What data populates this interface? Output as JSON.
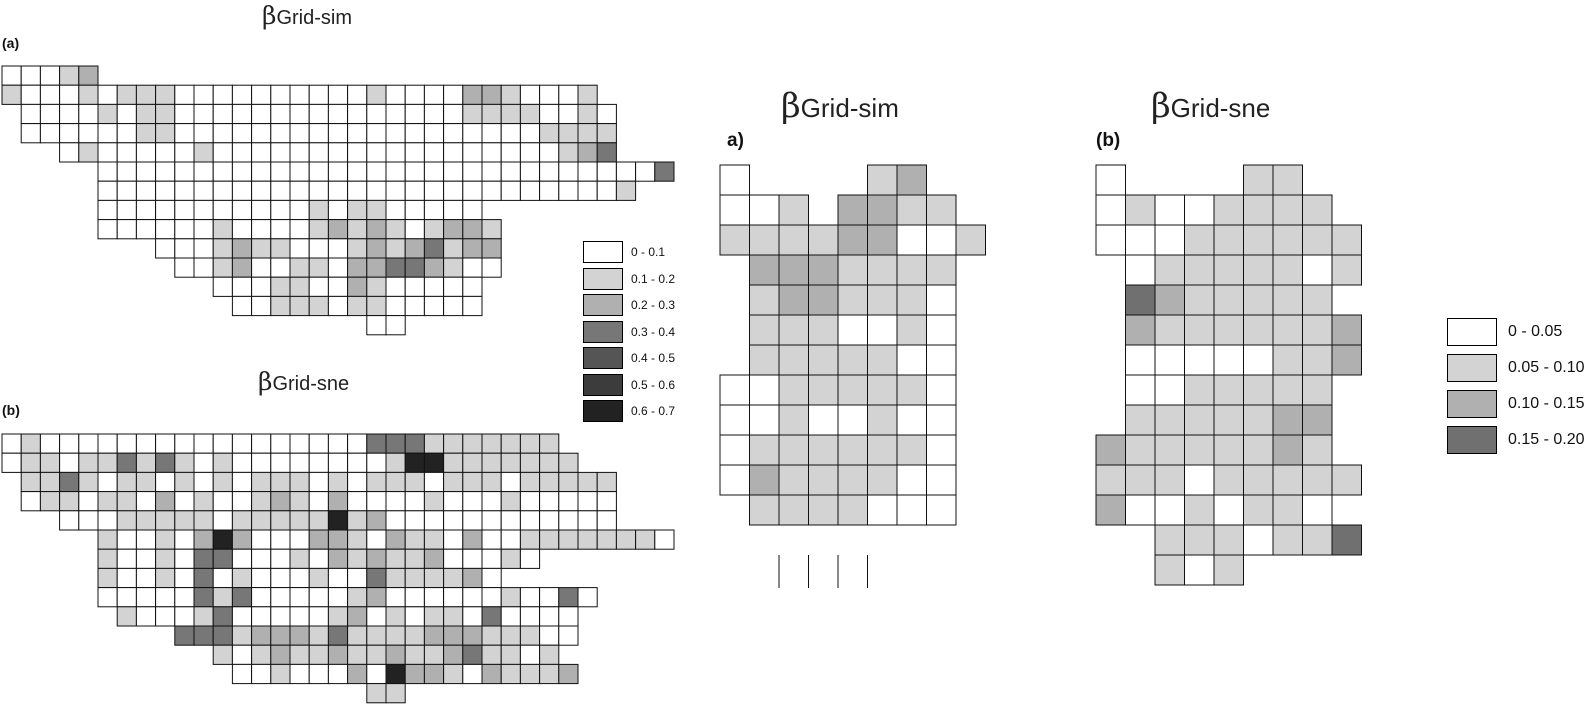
{
  "left_panel": {
    "map_a": {
      "title_symbol": "β",
      "title_text": "Grid-sim",
      "panel_label": "(a)"
    },
    "map_b": {
      "title_symbol": "β",
      "title_text": "Grid-sne",
      "panel_label": "(b)"
    },
    "legend": [
      {
        "label": "0 - 0.1",
        "color": "#ffffff"
      },
      {
        "label": "0.1 - 0.2",
        "color": "#d3d3d3"
      },
      {
        "label": "0.2 - 0.3",
        "color": "#b0b0b0"
      },
      {
        "label": "0.3 - 0.4",
        "color": "#777777"
      },
      {
        "label": "0.4 - 0.5",
        "color": "#555555"
      },
      {
        "label": "0.5 - 0.6",
        "color": "#3c3c3c"
      },
      {
        "label": "0.6 - 0.7",
        "color": "#222222"
      }
    ]
  },
  "right_panel": {
    "map_a": {
      "title_symbol": "β",
      "title_text": "Grid-sim",
      "panel_label": "a)"
    },
    "map_b": {
      "title_symbol": "β",
      "title_text": "Grid-sne",
      "panel_label": "(b)"
    },
    "legend": [
      {
        "label": "0 - 0.05",
        "color": "#ffffff"
      },
      {
        "label": "0.05 - 0.10",
        "color": "#d3d3d3"
      },
      {
        "label": "0.10 - 0.15",
        "color": "#b0b0b0"
      },
      {
        "label": "0.15 - 0.20",
        "color": "#707070"
      }
    ]
  },
  "grids": {
    "left_a": {
      "rows": [
        {
          "start": 0,
          "classes": [
            0,
            0,
            0,
            1,
            2
          ]
        },
        {
          "start": 0,
          "classes": [
            1,
            0,
            0,
            0,
            1,
            0,
            1,
            1,
            1,
            0,
            0,
            0,
            0,
            0,
            0,
            0,
            0,
            0,
            0,
            1,
            0,
            0,
            0,
            0,
            2,
            2,
            1,
            0,
            0,
            0,
            1
          ]
        },
        {
          "start": 1,
          "classes": [
            0,
            0,
            0,
            0,
            1,
            0,
            1,
            1,
            0,
            0,
            0,
            0,
            0,
            0,
            0,
            0,
            0,
            0,
            0,
            0,
            0,
            0,
            0,
            1,
            1,
            1,
            1,
            0,
            0,
            1,
            0
          ]
        },
        {
          "start": 1,
          "classes": [
            0,
            0,
            0,
            0,
            0,
            0,
            1,
            1,
            0,
            0,
            0,
            0,
            0,
            0,
            0,
            0,
            0,
            0,
            0,
            0,
            0,
            0,
            0,
            0,
            0,
            0,
            0,
            1,
            1,
            1,
            1
          ]
        },
        {
          "start": 3,
          "classes": [
            0,
            1,
            0,
            0,
            0,
            0,
            0,
            1,
            0,
            0,
            0,
            0,
            0,
            0,
            0,
            0,
            0,
            0,
            0,
            0,
            0,
            0,
            0,
            0,
            0,
            0,
            1,
            2,
            3
          ]
        },
        {
          "start": 5,
          "classes": [
            0,
            0,
            0,
            0,
            0,
            0,
            0,
            0,
            0,
            0,
            0,
            0,
            0,
            0,
            0,
            0,
            0,
            0,
            0,
            0,
            0,
            0,
            0,
            0,
            0,
            0,
            0,
            0,
            0,
            3
          ]
        },
        {
          "start": 5,
          "classes": [
            0,
            0,
            0,
            0,
            0,
            0,
            0,
            0,
            0,
            0,
            0,
            0,
            0,
            0,
            0,
            0,
            0,
            0,
            0,
            0,
            0,
            0,
            0,
            0,
            0,
            0,
            0,
            1
          ]
        },
        {
          "start": 5,
          "classes": [
            0,
            0,
            0,
            0,
            0,
            0,
            0,
            0,
            0,
            0,
            0,
            1,
            0,
            1,
            1,
            0,
            0,
            0,
            0,
            0
          ]
        },
        {
          "start": 5,
          "classes": [
            0,
            0,
            0,
            0,
            0,
            0,
            1,
            0,
            0,
            0,
            0,
            1,
            2,
            1,
            2,
            1,
            0,
            1,
            2,
            2,
            1
          ]
        },
        {
          "start": 8,
          "classes": [
            0,
            0,
            0,
            1,
            2,
            1,
            1,
            0,
            0,
            0,
            1,
            2,
            1,
            2,
            3,
            1,
            2,
            2
          ]
        },
        {
          "start": 9,
          "classes": [
            0,
            0,
            1,
            2,
            0,
            0,
            1,
            1,
            0,
            2,
            2,
            3,
            3,
            2,
            1,
            0,
            0
          ]
        },
        {
          "start": 11,
          "classes": [
            0,
            0,
            0,
            1,
            1,
            0,
            0,
            2,
            1,
            0,
            0,
            0,
            0,
            0
          ]
        },
        {
          "start": 12,
          "classes": [
            0,
            0,
            1,
            1,
            1,
            0,
            1,
            1,
            0,
            0,
            0,
            0,
            0
          ]
        },
        {
          "start": 19,
          "classes": [
            0,
            0
          ]
        }
      ]
    },
    "left_b": {
      "rows": [
        {
          "start": 0,
          "classes": [
            0,
            1,
            0,
            0,
            0,
            0,
            0,
            0,
            0,
            0,
            0,
            0,
            0,
            0,
            0,
            0,
            0,
            0,
            0,
            3,
            3,
            3,
            1,
            1,
            1,
            1,
            1,
            1,
            1
          ]
        },
        {
          "start": 0,
          "classes": [
            0,
            1,
            1,
            0,
            1,
            1,
            3,
            1,
            3,
            1,
            0,
            1,
            0,
            0,
            0,
            0,
            0,
            0,
            0,
            0,
            1,
            6,
            6,
            1,
            1,
            1,
            1,
            1,
            1,
            1
          ]
        },
        {
          "start": 1,
          "classes": [
            1,
            1,
            3,
            1,
            0,
            1,
            1,
            0,
            1,
            0,
            1,
            0,
            1,
            1,
            1,
            0,
            1,
            0,
            1,
            1,
            1,
            0,
            1,
            1,
            1,
            0,
            1,
            1,
            1,
            1,
            1
          ]
        },
        {
          "start": 1,
          "classes": [
            0,
            1,
            1,
            0,
            1,
            1,
            0,
            2,
            0,
            1,
            0,
            0,
            1,
            2,
            1,
            0,
            2,
            0,
            0,
            0,
            0,
            1,
            0,
            0,
            0,
            1,
            0,
            0,
            0,
            0,
            0
          ]
        },
        {
          "start": 3,
          "classes": [
            0,
            0,
            0,
            1,
            1,
            1,
            1,
            1,
            0,
            1,
            1,
            1,
            1,
            1,
            6,
            1,
            2,
            0,
            0,
            0,
            0,
            0,
            0,
            0,
            0,
            0,
            0,
            0,
            0
          ]
        },
        {
          "start": 5,
          "classes": [
            1,
            0,
            0,
            1,
            0,
            2,
            6,
            2,
            0,
            0,
            0,
            2,
            2,
            1,
            0,
            2,
            1,
            1,
            0,
            2,
            0,
            0,
            1,
            1,
            1,
            1,
            1,
            1,
            1,
            0
          ]
        },
        {
          "start": 5,
          "classes": [
            1,
            0,
            0,
            1,
            0,
            3,
            3,
            0,
            0,
            0,
            1,
            0,
            2,
            1,
            2,
            1,
            1,
            2,
            0,
            0,
            0,
            1,
            0
          ]
        },
        {
          "start": 5,
          "classes": [
            1,
            0,
            0,
            1,
            0,
            3,
            0,
            1,
            0,
            0,
            0,
            1,
            0,
            0,
            3,
            1,
            1,
            1,
            1,
            2,
            0
          ]
        },
        {
          "start": 5,
          "classes": [
            0,
            0,
            0,
            0,
            0,
            3,
            1,
            3,
            0,
            0,
            0,
            0,
            0,
            1,
            2,
            0,
            0,
            0,
            0,
            0,
            0,
            1,
            0,
            0,
            3,
            0
          ]
        },
        {
          "start": 6,
          "classes": [
            1,
            0,
            0,
            0,
            1,
            3,
            0,
            0,
            0,
            0,
            0,
            1,
            2,
            0,
            1,
            0,
            1,
            1,
            0,
            3,
            0,
            0,
            0,
            0
          ]
        },
        {
          "start": 9,
          "classes": [
            3,
            3,
            3,
            1,
            2,
            2,
            2,
            1,
            3,
            1,
            1,
            1,
            1,
            2,
            2,
            2,
            1,
            1,
            1,
            0,
            0
          ]
        },
        {
          "start": 11,
          "classes": [
            1,
            0,
            1,
            2,
            1,
            1,
            2,
            1,
            1,
            2,
            1,
            1,
            2,
            3,
            1,
            1,
            0,
            1
          ]
        },
        {
          "start": 12,
          "classes": [
            0,
            0,
            1,
            0,
            0,
            0,
            2,
            0,
            6,
            2,
            2,
            1,
            0,
            2,
            1,
            1,
            1,
            2
          ]
        },
        {
          "start": 19,
          "classes": [
            1,
            1
          ]
        }
      ]
    },
    "right_a": {
      "rows": [
        {
          "start": 0,
          "classes": [
            0,
            -1,
            -1,
            -1,
            -1,
            1,
            2
          ]
        },
        {
          "start": 0,
          "classes": [
            0,
            0,
            1,
            -1,
            2,
            2,
            1,
            1
          ]
        },
        {
          "start": 0,
          "classes": [
            1,
            1,
            1,
            1,
            2,
            2,
            0,
            0,
            1
          ]
        },
        {
          "start": 1,
          "classes": [
            2,
            2,
            2,
            1,
            1,
            1,
            1
          ]
        },
        {
          "start": 1,
          "classes": [
            1,
            2,
            2,
            1,
            1,
            1,
            0
          ]
        },
        {
          "start": 1,
          "classes": [
            1,
            1,
            1,
            0,
            0,
            1,
            0
          ]
        },
        {
          "start": 1,
          "classes": [
            1,
            1,
            1,
            1,
            1,
            0,
            0
          ]
        },
        {
          "start": 0,
          "classes": [
            0,
            0,
            1,
            1,
            1,
            1,
            1,
            0
          ]
        },
        {
          "start": 0,
          "classes": [
            0,
            0,
            1,
            0,
            0,
            1,
            0,
            0
          ]
        },
        {
          "start": 0,
          "classes": [
            0,
            1,
            1,
            1,
            1,
            1,
            1,
            0
          ]
        },
        {
          "start": 0,
          "classes": [
            0,
            2,
            1,
            1,
            1,
            1,
            0,
            0
          ]
        },
        {
          "start": 1,
          "classes": [
            1,
            1,
            1,
            1,
            0,
            0,
            0
          ]
        }
      ]
    },
    "right_b": {
      "rows": [
        {
          "start": 0,
          "classes": [
            0,
            -1,
            -1,
            -1,
            -1,
            1,
            1
          ]
        },
        {
          "start": 0,
          "classes": [
            0,
            1,
            0,
            0,
            1,
            1,
            1,
            1
          ]
        },
        {
          "start": 0,
          "classes": [
            0,
            0,
            0,
            1,
            1,
            1,
            1,
            1,
            1
          ]
        },
        {
          "start": 1,
          "classes": [
            0,
            1,
            1,
            1,
            1,
            1,
            0,
            1
          ]
        },
        {
          "start": 1,
          "classes": [
            3,
            2,
            1,
            1,
            1,
            1,
            1
          ]
        },
        {
          "start": 1,
          "classes": [
            2,
            1,
            1,
            1,
            1,
            1,
            1,
            2
          ]
        },
        {
          "start": 1,
          "classes": [
            0,
            0,
            0,
            0,
            0,
            1,
            1,
            2
          ]
        },
        {
          "start": 1,
          "classes": [
            0,
            0,
            1,
            1,
            1,
            1,
            1
          ]
        },
        {
          "start": 1,
          "classes": [
            1,
            1,
            1,
            1,
            1,
            2,
            2
          ]
        },
        {
          "start": 0,
          "classes": [
            2,
            1,
            1,
            1,
            1,
            1,
            2,
            1
          ]
        },
        {
          "start": 0,
          "classes": [
            1,
            1,
            1,
            0,
            1,
            1,
            1,
            1,
            1
          ]
        },
        {
          "start": 0,
          "classes": [
            2,
            0,
            0,
            1,
            0,
            1,
            1,
            0
          ]
        },
        {
          "start": 2,
          "classes": [
            1,
            1,
            1,
            0,
            1,
            1,
            3
          ]
        },
        {
          "start": 2,
          "classes": [
            1,
            0,
            1
          ]
        }
      ]
    }
  }
}
